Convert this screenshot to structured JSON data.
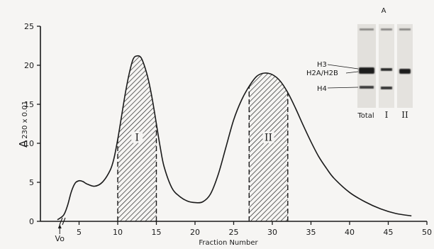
{
  "chart_data": {
    "type": "line",
    "title": "",
    "xlabel": "Fraction Number",
    "ylabel_main": "A",
    "ylabel_sub": "230 x 0.01",
    "xlim": [
      0,
      50
    ],
    "ylim": [
      0,
      25
    ],
    "x_ticks": [
      5,
      10,
      15,
      20,
      25,
      30,
      35,
      40,
      45,
      50
    ],
    "y_ticks": [
      0,
      5,
      10,
      15,
      20,
      25
    ],
    "void_volume_label": "Vo",
    "void_volume_x": 2.5,
    "grid": false,
    "series": [
      {
        "x": [
          2.2,
          3.0,
          3.5,
          4.0,
          4.5,
          5.0,
          5.5,
          6.0,
          7.0,
          8.0,
          9.0,
          9.5,
          10.0,
          10.5,
          11.0,
          11.5,
          12.0,
          12.5,
          13.0,
          13.5,
          14.0,
          14.5,
          15.0,
          15.5,
          16.0,
          17.0,
          18.0,
          19.0,
          20.0,
          21.0,
          22.0,
          23.0,
          24.0,
          25.0,
          26.0,
          27.0,
          28.0,
          29.0,
          30.0,
          31.0,
          32.0,
          33.0,
          34.0,
          35.0,
          36.0,
          37.0,
          38.0,
          40.0,
          42.0,
          44.0,
          46.0,
          48.0
        ],
        "y": [
          0.2,
          0.8,
          2.0,
          3.8,
          4.9,
          5.2,
          5.1,
          4.8,
          4.5,
          5.0,
          6.5,
          8.0,
          10.5,
          13.5,
          16.5,
          19.0,
          20.8,
          21.2,
          21.0,
          19.8,
          18.0,
          15.5,
          12.5,
          9.5,
          7.0,
          4.3,
          3.2,
          2.6,
          2.4,
          2.5,
          3.5,
          6.0,
          9.5,
          13.0,
          15.5,
          17.3,
          18.6,
          19.0,
          18.8,
          18.0,
          16.5,
          14.5,
          12.3,
          10.2,
          8.3,
          6.8,
          5.5,
          3.7,
          2.5,
          1.6,
          1.0,
          0.7
        ]
      }
    ],
    "shaded_regions": [
      {
        "label": "I",
        "x_start": 10,
        "x_end": 15
      },
      {
        "label": "II",
        "x_start": 27,
        "x_end": 32
      }
    ],
    "inset_gel": {
      "header": "A",
      "band_labels": [
        "H3",
        "H2A/H2B",
        "H4"
      ],
      "lane_labels": [
        "Total",
        "I",
        "II"
      ]
    }
  }
}
